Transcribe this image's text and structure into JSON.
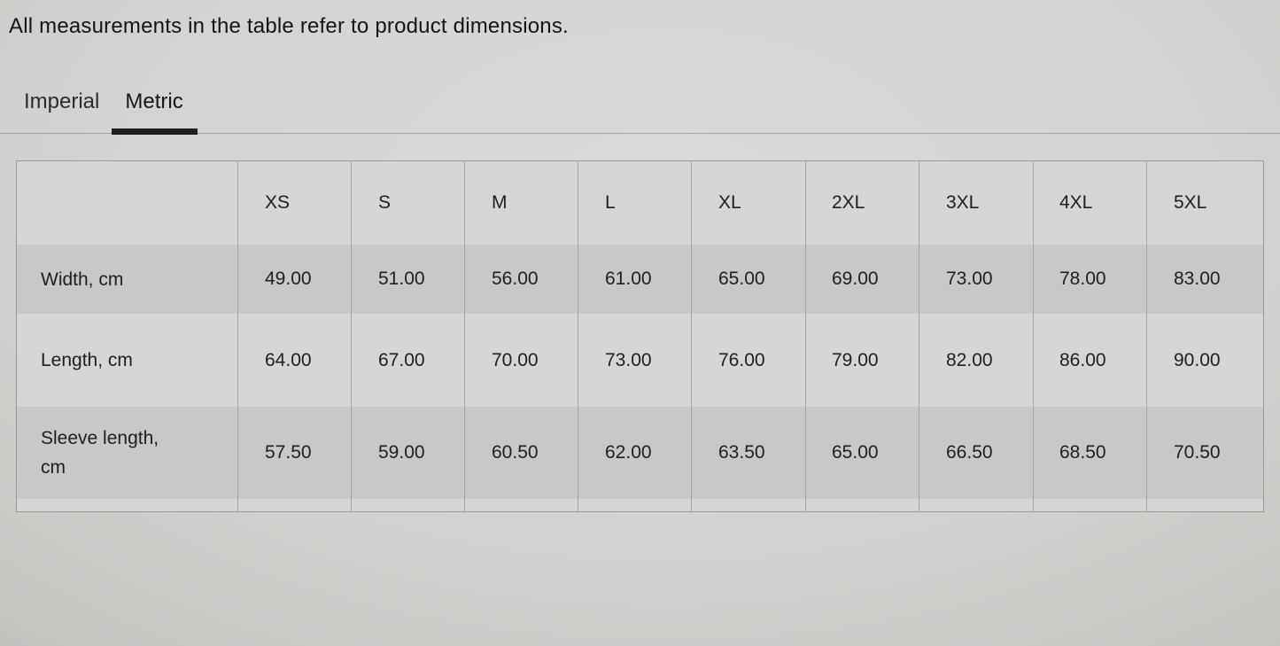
{
  "page": {
    "heading": "All measurements in the table refer to product dimensions."
  },
  "tabs": [
    {
      "label": "Imperial",
      "active": false
    },
    {
      "label": "Metric",
      "active": true
    }
  ],
  "table": {
    "columns": [
      "XS",
      "S",
      "M",
      "L",
      "XL",
      "2XL",
      "3XL",
      "4XL",
      "5XL"
    ],
    "rows": [
      {
        "label": "Width, cm",
        "values": [
          "49.00",
          "51.00",
          "56.00",
          "61.00",
          "65.00",
          "69.00",
          "73.00",
          "78.00",
          "83.00"
        ]
      },
      {
        "label": "Length, cm",
        "values": [
          "64.00",
          "67.00",
          "70.00",
          "73.00",
          "76.00",
          "79.00",
          "82.00",
          "86.00",
          "90.00"
        ]
      },
      {
        "label": "Sleeve length, cm",
        "values": [
          "57.50",
          "59.00",
          "60.50",
          "62.00",
          "63.50",
          "65.00",
          "66.50",
          "68.50",
          "70.50"
        ]
      }
    ]
  },
  "colors": {
    "page_background": "#d4d3d1",
    "table_background": "#d7d6d4",
    "row_stripe": "#c9c8c6",
    "active_tab_underline": "#1e1e1e",
    "text": "#1b1b1b",
    "table_border": "#9a9997"
  }
}
